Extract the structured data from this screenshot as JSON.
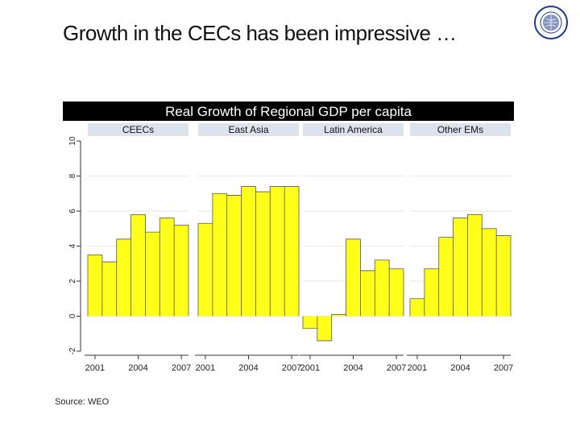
{
  "slide": {
    "title": "Growth in the CECs has been impressive …",
    "source": "Source: WEO",
    "logo_text": "INTERNATIONAL MONETARY FUND"
  },
  "colors": {
    "bar_fill": "#ffff1a",
    "bar_stroke": "#555555",
    "title_band": "#000000",
    "title_text": "#ffffff",
    "strip_fill": "#dde3ec",
    "grid": "#e6e6e6",
    "axis": "#333333",
    "logo": "#1f3a8a"
  },
  "chart_data": {
    "type": "bar",
    "title": "Real Growth of Regional GDP per capita",
    "xlabel": "",
    "ylabel": "",
    "ylim": [
      -2,
      10
    ],
    "yticks": [
      "-2",
      "0",
      "2",
      "4",
      "6",
      "8",
      "10"
    ],
    "xticks": [
      "2001",
      "2004",
      "2007"
    ],
    "x": [
      2001,
      2002,
      2003,
      2004,
      2005,
      2006,
      2007
    ],
    "panels": [
      {
        "name": "CEEC s",
        "label": "CEECs",
        "values": [
          3.5,
          3.1,
          4.4,
          5.8,
          4.8,
          5.6,
          5.2
        ]
      },
      {
        "name": "East Asia",
        "label": "East Asia",
        "values": [
          5.3,
          7.0,
          6.9,
          7.4,
          7.1,
          7.4,
          7.4
        ]
      },
      {
        "name": "Latin America",
        "label": "Latin America",
        "values": [
          -0.7,
          -1.4,
          0.1,
          4.4,
          2.6,
          3.2,
          2.7
        ]
      },
      {
        "name": "Other EMs",
        "label": "Other EMs",
        "values": [
          1.0,
          2.7,
          4.5,
          5.6,
          5.8,
          5.0,
          4.6
        ]
      }
    ]
  }
}
